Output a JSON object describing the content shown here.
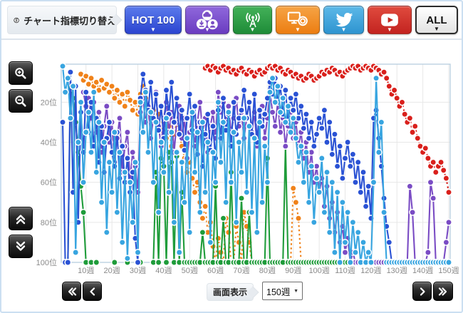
{
  "toolbar": {
    "label": "チャート指標切り替え",
    "caret": "▼",
    "buttons": {
      "hot100": {
        "label": "HOT 100",
        "color": "#2e4fd8"
      },
      "downloads": {
        "color": "#7a4ec4"
      },
      "radio": {
        "color": "#2a9e46"
      },
      "video": {
        "color": "#f2891e"
      },
      "twitter": {
        "color": "#3fa8dc"
      },
      "youtube": {
        "color": "#d02c24"
      },
      "all": {
        "label": "ALL"
      }
    }
  },
  "controls": {
    "display_label": "画面表示",
    "display_value": "150週",
    "pager_first": "«",
    "pager_prev": "‹",
    "pager_next": "›",
    "pager_last": "»"
  },
  "chart_data": {
    "type": "line",
    "title": "",
    "xlabel": "week",
    "ylabel": "rank",
    "x_ticks": [
      "10週",
      "20週",
      "30週",
      "40週",
      "50週",
      "60週",
      "70週",
      "80週",
      "90週",
      "100週",
      "110週",
      "120週",
      "130週",
      "140週",
      "150週"
    ],
    "y_ticks": [
      "20位",
      "40位",
      "60位",
      "80位",
      "100位"
    ],
    "y_inverted": true,
    "ylim": [
      1,
      100
    ],
    "xlim": [
      1,
      150
    ],
    "grid": true,
    "legend": "none",
    "series": [
      {
        "name": "video",
        "color": "#f0821a",
        "dashed": true,
        "values": [
          null,
          null,
          null,
          null,
          null,
          null,
          null,
          6,
          9,
          7,
          11,
          8,
          12,
          10,
          14,
          9,
          13,
          11,
          15,
          12,
          18,
          14,
          20,
          16,
          22,
          15,
          19,
          24,
          20,
          26,
          16,
          12,
          18,
          22,
          28,
          24,
          30,
          26,
          34,
          30,
          38,
          32,
          42,
          36,
          30,
          35,
          42,
          48,
          55,
          50,
          58,
          65,
          60,
          70,
          78,
          72,
          85,
          80,
          92,
          100,
          88,
          95,
          100,
          78,
          85,
          100,
          100,
          82,
          90,
          100,
          75,
          82,
          90,
          100,
          100,
          100,
          100,
          100,
          100,
          100,
          100,
          100,
          100,
          100,
          100,
          100,
          100,
          100,
          100,
          63,
          70,
          78,
          100,
          100,
          100,
          100,
          100,
          100,
          100,
          100,
          100,
          100,
          100,
          100,
          100,
          100,
          100,
          100,
          100,
          100,
          100,
          100,
          100,
          100,
          100,
          100,
          100,
          100,
          100,
          100,
          null,
          null,
          null,
          null,
          null,
          null,
          null,
          null,
          null,
          null,
          null,
          null,
          null,
          null,
          null,
          null,
          null,
          null,
          null,
          null,
          null,
          null,
          null,
          null,
          null,
          null,
          null,
          null,
          null,
          null
        ]
      },
      {
        "name": "radio",
        "color": "#1f9c3a",
        "dashed": false,
        "values": [
          null,
          null,
          100,
          13,
          18,
          30,
          45,
          62,
          75,
          100,
          null,
          100,
          null,
          100,
          null,
          null,
          null,
          null,
          null,
          null,
          100,
          null,
          null,
          null,
          null,
          100,
          null,
          null,
          null,
          null,
          100,
          null,
          null,
          null,
          null,
          100,
          55,
          100,
          48,
          52,
          100,
          45,
          50,
          100,
          47,
          100,
          65,
          100,
          100,
          100,
          100,
          100,
          100,
          100,
          85,
          100,
          100,
          100,
          100,
          62,
          100,
          100,
          78,
          100,
          100,
          55,
          100,
          100,
          100,
          68,
          100,
          100,
          75,
          100,
          100,
          100,
          100,
          100,
          100,
          48,
          100,
          100,
          100,
          100,
          100,
          100,
          42,
          100,
          100,
          100,
          100,
          100,
          100,
          100,
          100,
          100,
          100,
          100,
          100,
          100,
          100,
          100,
          100,
          100,
          100,
          100,
          100,
          100,
          100,
          100,
          100,
          100,
          100,
          100,
          100,
          100,
          100,
          100,
          100,
          100,
          100,
          100,
          100,
          100,
          100,
          100,
          100,
          100,
          100,
          100,
          100,
          100,
          100,
          100,
          100,
          100,
          100,
          100,
          100,
          100,
          100,
          100,
          100,
          100,
          100,
          100,
          100,
          100,
          100,
          100
        ]
      },
      {
        "name": "downloads",
        "color": "#7a4cc4",
        "dashed": false,
        "values": [
          null,
          null,
          null,
          null,
          null,
          null,
          null,
          null,
          15,
          22,
          18,
          28,
          20,
          35,
          25,
          45,
          32,
          22,
          40,
          30,
          50,
          38,
          28,
          55,
          42,
          35,
          60,
          45,
          52,
          65,
          25,
          18,
          30,
          22,
          38,
          28,
          15,
          32,
          42,
          28,
          20,
          35,
          25,
          45,
          30,
          22,
          38,
          28,
          48,
          35,
          25,
          42,
          30,
          20,
          35,
          28,
          45,
          32,
          25,
          38,
          15,
          25,
          20,
          30,
          22,
          35,
          28,
          18,
          32,
          25,
          38,
          28,
          20,
          35,
          25,
          42,
          30,
          22,
          38,
          28,
          15,
          25,
          32,
          20,
          35,
          28,
          42,
          32,
          25,
          38,
          30,
          42,
          35,
          48,
          40,
          55,
          45,
          60,
          52,
          65,
          58,
          72,
          62,
          78,
          70,
          85,
          75,
          90,
          82,
          95,
          88,
          100,
          95,
          100,
          100,
          100,
          100,
          100,
          100,
          100,
          100,
          100,
          100,
          100,
          100,
          100,
          100,
          100,
          100,
          100,
          100,
          100,
          100,
          100,
          62,
          75,
          100,
          100,
          100,
          100,
          100,
          95,
          60,
          68,
          100,
          100,
          100,
          100,
          90,
          80
        ]
      },
      {
        "name": "HOT 100",
        "color": "#2a52d4",
        "dashed": false,
        "values": [
          30,
          100,
          100,
          5,
          65,
          12,
          80,
          25,
          45,
          15,
          35,
          20,
          42,
          28,
          50,
          32,
          55,
          38,
          30,
          45,
          52,
          35,
          58,
          42,
          60,
          48,
          65,
          55,
          88,
          100,
          18,
          6,
          14,
          24,
          10,
          28,
          16,
          34,
          22,
          38,
          14,
          26,
          10,
          30,
          18,
          36,
          24,
          44,
          28,
          16,
          34,
          22,
          46,
          30,
          52,
          36,
          26,
          44,
          32,
          48,
          24,
          38,
          18,
          34,
          26,
          42,
          20,
          36,
          28,
          24,
          14,
          28,
          20,
          36,
          16,
          40,
          24,
          32,
          26,
          18,
          10,
          16,
          8,
          20,
          12,
          26,
          14,
          30,
          18,
          24,
          16,
          28,
          22,
          33,
          26,
          38,
          30,
          42,
          36,
          28,
          33,
          24,
          40,
          30,
          46,
          36,
          52,
          42,
          58,
          48,
          40,
          52,
          46,
          60,
          50,
          65,
          55,
          72,
          62,
          78,
          28,
          24,
          38,
          52,
          68,
          82,
          90,
          100,
          100,
          100,
          100,
          100,
          100,
          100,
          100,
          100,
          100,
          100,
          100,
          100,
          100,
          100,
          100,
          100,
          100,
          100,
          100,
          100,
          100,
          100
        ]
      },
      {
        "name": "twitter",
        "color": "#38a5e0",
        "dashed": false,
        "values": [
          2,
          15,
          8,
          28,
          12,
          95,
          40,
          20,
          60,
          35,
          25,
          45,
          15,
          55,
          30,
          70,
          40,
          85,
          50,
          65,
          35,
          75,
          45,
          90,
          55,
          98,
          60,
          80,
          50,
          95,
          20,
          35,
          15,
          45,
          25,
          60,
          30,
          75,
          40,
          55,
          28,
          65,
          35,
          80,
          45,
          95,
          50,
          70,
          38,
          85,
          25,
          55,
          35,
          75,
          30,
          65,
          40,
          90,
          45,
          60,
          20,
          50,
          30,
          70,
          25,
          60,
          35,
          80,
          40,
          55,
          28,
          65,
          32,
          75,
          38,
          85,
          30,
          70,
          42,
          60,
          15,
          8,
          20,
          12,
          25,
          18,
          30,
          22,
          35,
          28,
          38,
          50,
          42,
          60,
          45,
          70,
          52,
          80,
          58,
          65,
          48,
          75,
          55,
          85,
          60,
          95,
          65,
          100,
          70,
          90,
          75,
          100,
          80,
          95,
          85,
          100,
          90,
          100,
          95,
          100,
          60,
          8,
          45,
          30,
          75,
          100,
          100,
          100,
          100,
          100,
          100,
          100,
          100,
          100,
          100,
          100,
          100,
          100,
          100,
          100,
          100,
          100,
          100,
          100,
          100,
          100,
          100,
          100,
          100,
          100
        ]
      },
      {
        "name": "youtube",
        "color": "#d9201c",
        "dashed": true,
        "values": [
          null,
          null,
          null,
          null,
          null,
          null,
          null,
          null,
          null,
          null,
          null,
          null,
          null,
          null,
          null,
          null,
          null,
          null,
          null,
          null,
          null,
          null,
          null,
          null,
          null,
          null,
          null,
          null,
          null,
          null,
          null,
          null,
          null,
          null,
          null,
          null,
          null,
          null,
          null,
          null,
          null,
          null,
          null,
          null,
          null,
          null,
          null,
          null,
          null,
          null,
          null,
          null,
          null,
          null,
          null,
          3,
          2,
          4,
          2,
          3,
          5,
          3,
          2,
          4,
          3,
          5,
          4,
          6,
          4,
          3,
          5,
          6,
          4,
          5,
          7,
          5,
          4,
          6,
          5,
          3,
          2,
          3,
          2,
          4,
          3,
          5,
          6,
          4,
          5,
          7,
          6,
          8,
          7,
          9,
          8,
          6,
          7,
          9,
          8,
          7,
          5,
          6,
          4,
          5,
          3,
          4,
          6,
          5,
          7,
          5,
          4,
          3,
          2,
          3,
          2,
          4,
          3,
          2,
          3,
          4,
          2,
          3,
          4,
          6,
          5,
          8,
          12,
          16,
          14,
          18,
          22,
          20,
          26,
          30,
          28,
          35,
          32,
          38,
          42,
          45,
          43,
          48,
          52,
          50,
          55,
          52,
          50,
          54,
          58,
          65
        ]
      }
    ]
  }
}
